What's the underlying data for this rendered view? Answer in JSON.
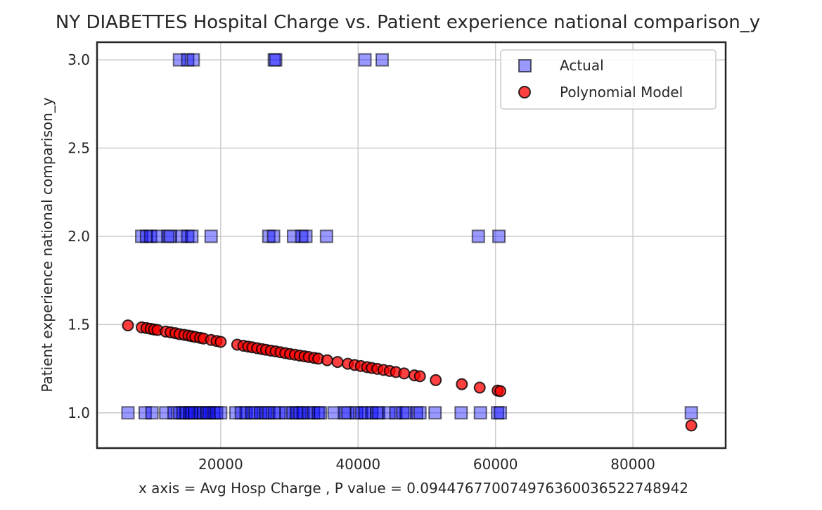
{
  "chart_data": {
    "type": "scatter",
    "title": "NY DIABETTES Hospital Charge vs. Patient experience national comparison_y",
    "xlabel": "x axis = Avg Hosp Charge , P value = 0.09447677007497636003652274894​2",
    "ylabel": "Patient experience national comparison_y",
    "xlim": [
      2000,
      93500
    ],
    "ylim": [
      0.8,
      3.1
    ],
    "x_ticks": [
      20000,
      40000,
      60000,
      80000
    ],
    "x_tick_labels": [
      "20000",
      "40000",
      "60000",
      "80000"
    ],
    "y_ticks": [
      1.0,
      1.5,
      2.0,
      2.5,
      3.0
    ],
    "y_tick_labels": [
      "1.0",
      "1.5",
      "2.0",
      "2.5",
      "3.0"
    ],
    "grid": true,
    "legend_position": "top-right",
    "colors": {
      "actual": "#0000ff",
      "model": "#ff0000",
      "grid": "#cccccc",
      "text": "#262626"
    },
    "series": [
      {
        "name": "Actual",
        "marker": "square",
        "x": [
          6500,
          9000,
          10000,
          12000,
          13200,
          14000,
          14500,
          15000,
          15500,
          15800,
          16200,
          17000,
          17500,
          18000,
          18300,
          19000,
          19400,
          20000,
          22200,
          23000,
          23700,
          24500,
          25000,
          25800,
          26500,
          27000,
          27800,
          28500,
          29500,
          30500,
          31000,
          31500,
          32000,
          32800,
          33500,
          34200,
          34500,
          36500,
          38000,
          38500,
          39800,
          40500,
          41000,
          42000,
          42700,
          43000,
          44500,
          45500,
          46500,
          47000,
          48500,
          49000,
          51200,
          55000,
          57800,
          60300,
          60700,
          88500,
          8500,
          9200,
          9800,
          10800,
          12300,
          12700,
          14300,
          15200,
          15800,
          18600,
          27000,
          27700,
          30600,
          31800,
          32400,
          35400,
          57500,
          60500,
          14000,
          15200,
          16000,
          27800,
          28000,
          41000,
          43500
        ],
        "y": [
          1,
          1,
          1,
          1,
          1,
          1,
          1,
          1,
          1,
          1,
          1,
          1,
          1,
          1,
          1,
          1,
          1,
          1,
          1,
          1,
          1,
          1,
          1,
          1,
          1,
          1,
          1,
          1,
          1,
          1,
          1,
          1,
          1,
          1,
          1,
          1,
          1,
          1,
          1,
          1,
          1,
          1,
          1,
          1,
          1,
          1,
          1,
          1,
          1,
          1,
          1,
          1,
          1,
          1,
          1,
          1,
          1,
          1,
          2,
          2,
          2,
          2,
          2,
          2,
          2,
          2,
          2,
          2,
          2,
          2,
          2,
          2,
          2,
          2,
          2,
          2,
          3,
          3,
          3,
          3,
          3,
          3,
          3
        ]
      },
      {
        "name": "Polynomial Model",
        "marker": "circle",
        "x": [
          6500,
          8500,
          9200,
          9800,
          10300,
          10800,
          12000,
          12700,
          13400,
          14000,
          14700,
          15300,
          15800,
          16300,
          17000,
          17500,
          18600,
          19400,
          20000,
          22400,
          23300,
          24000,
          24600,
          25300,
          26000,
          26600,
          27300,
          28000,
          28700,
          29400,
          30100,
          30800,
          31500,
          32200,
          32800,
          33600,
          34200,
          35500,
          37000,
          38500,
          39500,
          40400,
          41300,
          42000,
          42800,
          43700,
          44600,
          45500,
          46700,
          48200,
          49000,
          51300,
          55100,
          57700,
          60300,
          60700,
          88500
        ],
        "y": [
          1.495,
          1.484,
          1.48,
          1.476,
          1.472,
          1.469,
          1.46,
          1.456,
          1.451,
          1.446,
          1.442,
          1.438,
          1.434,
          1.43,
          1.425,
          1.421,
          1.413,
          1.407,
          1.402,
          1.386,
          1.38,
          1.375,
          1.371,
          1.366,
          1.361,
          1.357,
          1.352,
          1.348,
          1.343,
          1.338,
          1.333,
          1.329,
          1.324,
          1.32,
          1.316,
          1.311,
          1.307,
          1.298,
          1.288,
          1.278,
          1.271,
          1.265,
          1.259,
          1.254,
          1.249,
          1.243,
          1.237,
          1.231,
          1.223,
          1.212,
          1.207,
          1.185,
          1.162,
          1.143,
          1.126,
          1.123,
          0.928
        ]
      }
    ]
  }
}
